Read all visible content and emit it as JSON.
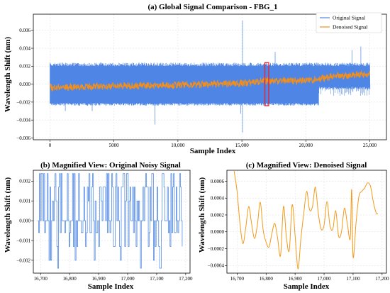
{
  "chart_data": [
    {
      "id": "a",
      "type": "line",
      "title": "(a) Global Signal Comparison - FBG_1",
      "xlabel": "Sample Index",
      "ylabel": "Wavelength Shift (nm)",
      "xlim": [
        -1300,
        26300
      ],
      "ylim": [
        -0.0062,
        0.0078
      ],
      "xticks": [
        0,
        5000,
        10000,
        15000,
        20000,
        25000
      ],
      "xtick_labels": [
        "0",
        "5000",
        "10,000",
        "15,000",
        "20,000",
        "25,000"
      ],
      "yticks": [
        -0.006,
        -0.004,
        -0.002,
        0.0,
        0.002,
        0.004,
        0.006
      ],
      "ytick_labels": [
        "−0.006",
        "−0.004",
        "−0.002",
        "0.000",
        "0.002",
        "0.004",
        "0.006"
      ],
      "grid": true,
      "legend_position": "top-right",
      "series": [
        {
          "name": "Original Signal",
          "color": "#4f86e6",
          "band": {
            "x": [
              0,
              25000
            ],
            "low": -0.0024,
            "high": 0.0024,
            "low_right": -0.0006
          },
          "spikes": [
            [
              15050,
              0.0071
            ],
            [
              15050,
              -0.0054
            ],
            [
              14900,
              -0.0033
            ],
            [
              8200,
              -0.0045
            ],
            [
              17600,
              0.0036
            ],
            [
              23600,
              0.0038
            ],
            [
              24300,
              0.0042
            ],
            [
              1200,
              -0.003
            ],
            [
              3300,
              -0.003
            ]
          ]
        },
        {
          "name": "Denoised Signal",
          "color": "#f28f1c",
          "trend": [
            [
              0,
              -0.0004
            ],
            [
              5000,
              -0.0002
            ],
            [
              10000,
              -0.0001
            ],
            [
              15000,
              0.0001
            ],
            [
              17000,
              0.0004
            ],
            [
              20000,
              0.0004
            ],
            [
              22000,
              0.0008
            ],
            [
              25000,
              0.0012
            ]
          ]
        }
      ],
      "highlight": {
        "x": [
          16800,
          17100
        ],
        "y": [
          -0.0024,
          0.0024
        ],
        "color": "#e8202a"
      }
    },
    {
      "id": "b",
      "type": "line",
      "title": "(b) Magnified View: Original Noisy Signal",
      "xlabel": "Sample Index",
      "ylabel": "Wavelength Shift (nm)",
      "xlim": [
        16675,
        17215
      ],
      "ylim": [
        -0.00265,
        0.00255
      ],
      "xticks": [
        16700,
        16800,
        16900,
        17000,
        17100,
        17200
      ],
      "xtick_labels": [
        "16,700",
        "16,800",
        "16,900",
        "17,000",
        "17,100",
        "17,200"
      ],
      "yticks": [
        -0.002,
        -0.001,
        0.0,
        0.001,
        0.002
      ],
      "ytick_labels": [
        "−0.002",
        "−0.001",
        "0.000",
        "0.001",
        "0.002"
      ],
      "grid": true,
      "series": [
        {
          "name": "Original Signal",
          "color": "#3f7de0",
          "levels": [
            0.00238,
            0.0017,
            0.001,
            0.0,
            -0.0006,
            -0.0013,
            -0.002,
            -0.0024
          ]
        }
      ]
    },
    {
      "id": "c",
      "type": "line",
      "title": "(c) Magnified View: Denoised Signal",
      "xlabel": "Sample Index",
      "ylabel": "Wavelength Shift (nm)",
      "xlim": [
        16665,
        17215
      ],
      "ylim": [
        -0.00049,
        0.00073
      ],
      "xticks": [
        16700,
        16800,
        16900,
        17000,
        17100,
        17200
      ],
      "xtick_labels": [
        "16,700",
        "16,800",
        "16,900",
        "17,000",
        "17,100",
        "17,200"
      ],
      "yticks": [
        -0.0004,
        -0.0002,
        0.0,
        0.0002,
        0.0004,
        0.0006
      ],
      "ytick_labels": [
        "−0.0004",
        "−0.0002",
        "0.0000",
        "0.0002",
        "0.0004",
        "0.0006"
      ],
      "grid": true,
      "series": [
        {
          "name": "Denoised Signal",
          "color": "#f29a17",
          "x": [
            16690,
            16700,
            16710,
            16720,
            16730,
            16740,
            16750,
            16760,
            16770,
            16780,
            16790,
            16800,
            16810,
            16820,
            16830,
            16840,
            16850,
            16860,
            16870,
            16880,
            16890,
            16900,
            16910,
            16920,
            16930,
            16940,
            16950,
            16960,
            16970,
            16980,
            16990,
            17000,
            17010,
            17020,
            17030,
            17040,
            17050,
            17060,
            17070,
            17080,
            17090,
            17095,
            17100,
            17110,
            17120,
            17130,
            17140,
            17150,
            17160,
            17170,
            17180,
            17185
          ],
          "y": [
            0.00072,
            0.00048,
            0.0001,
            -0.00014,
            5e-05,
            0.0003,
            0.0001,
            -8e-05,
            8e-05,
            0.00035,
            2e-05,
            -0.00012,
            -0.00018,
            -2e-05,
            0.0001,
            -8e-05,
            -0.00028,
            0.0003,
            -6e-05,
            -0.00022,
            0.00032,
            -4e-05,
            -0.00044,
            -8e-05,
            0.00022,
            0.00048,
            0.00026,
            0.0003,
            0.00053,
            0.00022,
            3e-05,
            8e-05,
            0.00036,
            8e-05,
            3e-05,
            0.00025,
            -5e-05,
            0.0,
            0.00028,
            0.0001,
            -8e-05,
            0.0005,
            -0.0003,
            0.0001,
            0.00042,
            0.00048,
            0.00052,
            0.00058,
            0.00054,
            0.00035,
            0.00022,
            0.00022
          ]
        }
      ]
    }
  ]
}
